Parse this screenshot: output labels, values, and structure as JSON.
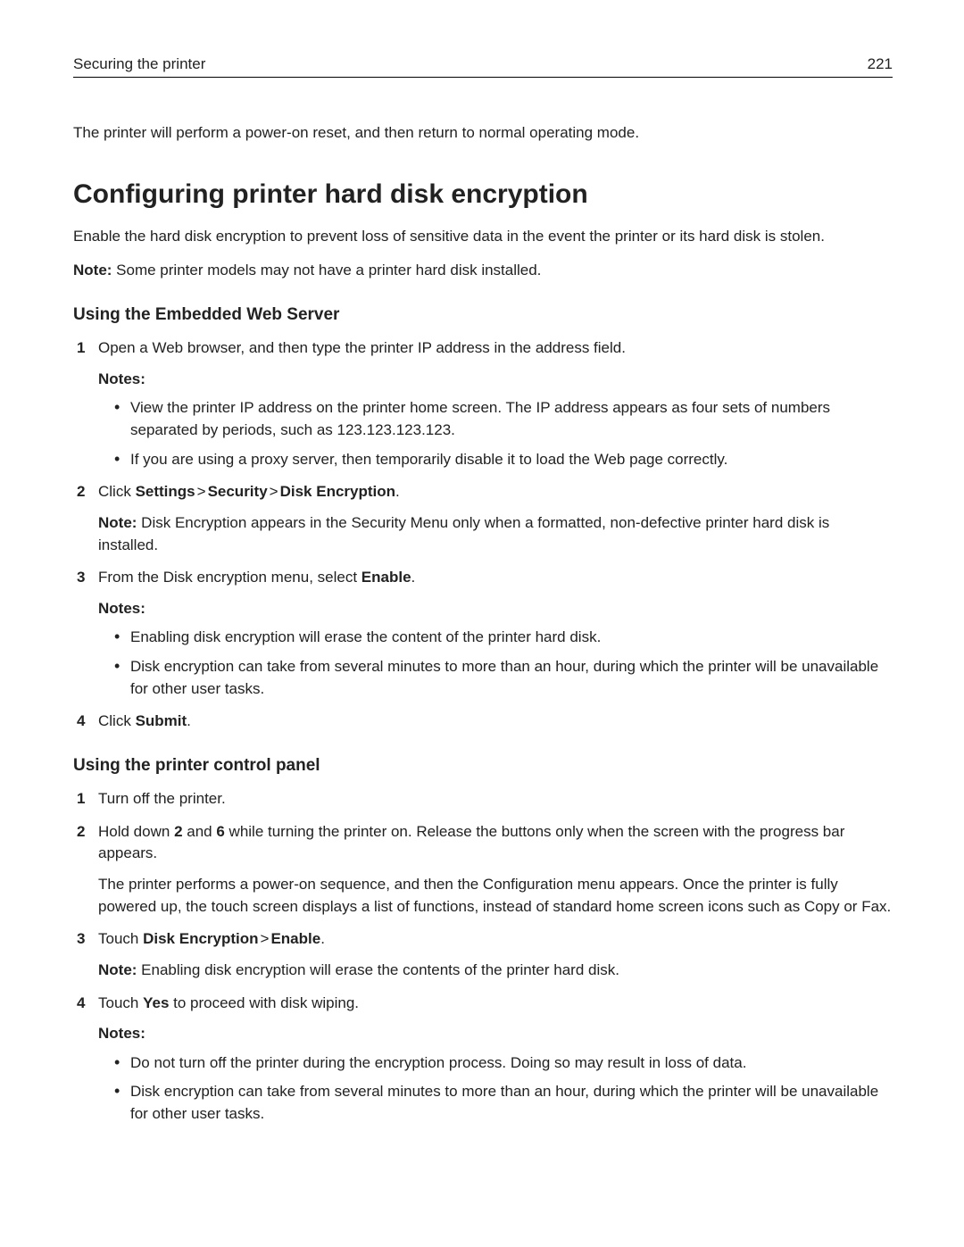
{
  "header": {
    "section_title": "Securing the printer",
    "page_number": "221"
  },
  "intro": "The printer will perform a power-on reset, and then return to normal operating mode.",
  "title": "Configuring printer hard disk encryption",
  "lead": "Enable the hard disk encryption to prevent loss of sensitive data in the event the printer or its hard disk is stolen.",
  "note_prefix": "Note:",
  "lead_note": " Some printer models may not have a printer hard disk installed.",
  "notes_label": "Notes:",
  "gt": ">",
  "sectionA": {
    "heading": "Using the Embedded Web Server",
    "step1": "Open a Web browser, and then type the printer IP address in the address field.",
    "step1_notes": [
      "View the printer IP address on the printer home screen. The IP address appears as four sets of numbers separated by periods, such as 123.123.123.123.",
      "If you are using a proxy server, then temporarily disable it to load the Web page correctly."
    ],
    "step2_pre": "Click ",
    "step2_b1": "Settings",
    "step2_b2": "Security",
    "step2_b3": "Disk Encryption",
    "step2_post": ".",
    "step2_note": " Disk Encryption appears in the Security Menu only when a formatted, non-defective printer hard disk is installed.",
    "step3_pre": "From the Disk encryption menu, select ",
    "step3_b": "Enable",
    "step3_post": ".",
    "step3_notes": [
      "Enabling disk encryption will erase the content of the printer hard disk.",
      "Disk encryption can take from several minutes to more than an hour, during which the printer will be unavailable for other user tasks."
    ],
    "step4_pre": "Click ",
    "step4_b": "Submit",
    "step4_post": "."
  },
  "sectionB": {
    "heading": "Using the printer control panel",
    "step1": "Turn off the printer.",
    "step2_pre": "Hold down ",
    "step2_b1": "2",
    "step2_mid": " and ",
    "step2_b2": "6",
    "step2_post": " while turning the printer on. Release the buttons only when the screen with the progress bar appears.",
    "step2_para": "The printer performs a power-on sequence, and then the Configuration menu appears. Once the printer is fully powered up, the touch screen displays a list of functions, instead of standard home screen icons such as Copy or Fax.",
    "step3_pre": "Touch ",
    "step3_b1": "Disk Encryption",
    "step3_b2": "Enable",
    "step3_post": ".",
    "step3_note": " Enabling disk encryption will erase the contents of the printer hard disk.",
    "step4_pre": "Touch ",
    "step4_b": "Yes",
    "step4_post": " to proceed with disk wiping.",
    "step4_notes": [
      "Do not turn off the printer during the encryption process. Doing so may result in loss of data.",
      "Disk encryption can take from several minutes to more than an hour, during which the printer will be unavailable for other user tasks."
    ]
  }
}
